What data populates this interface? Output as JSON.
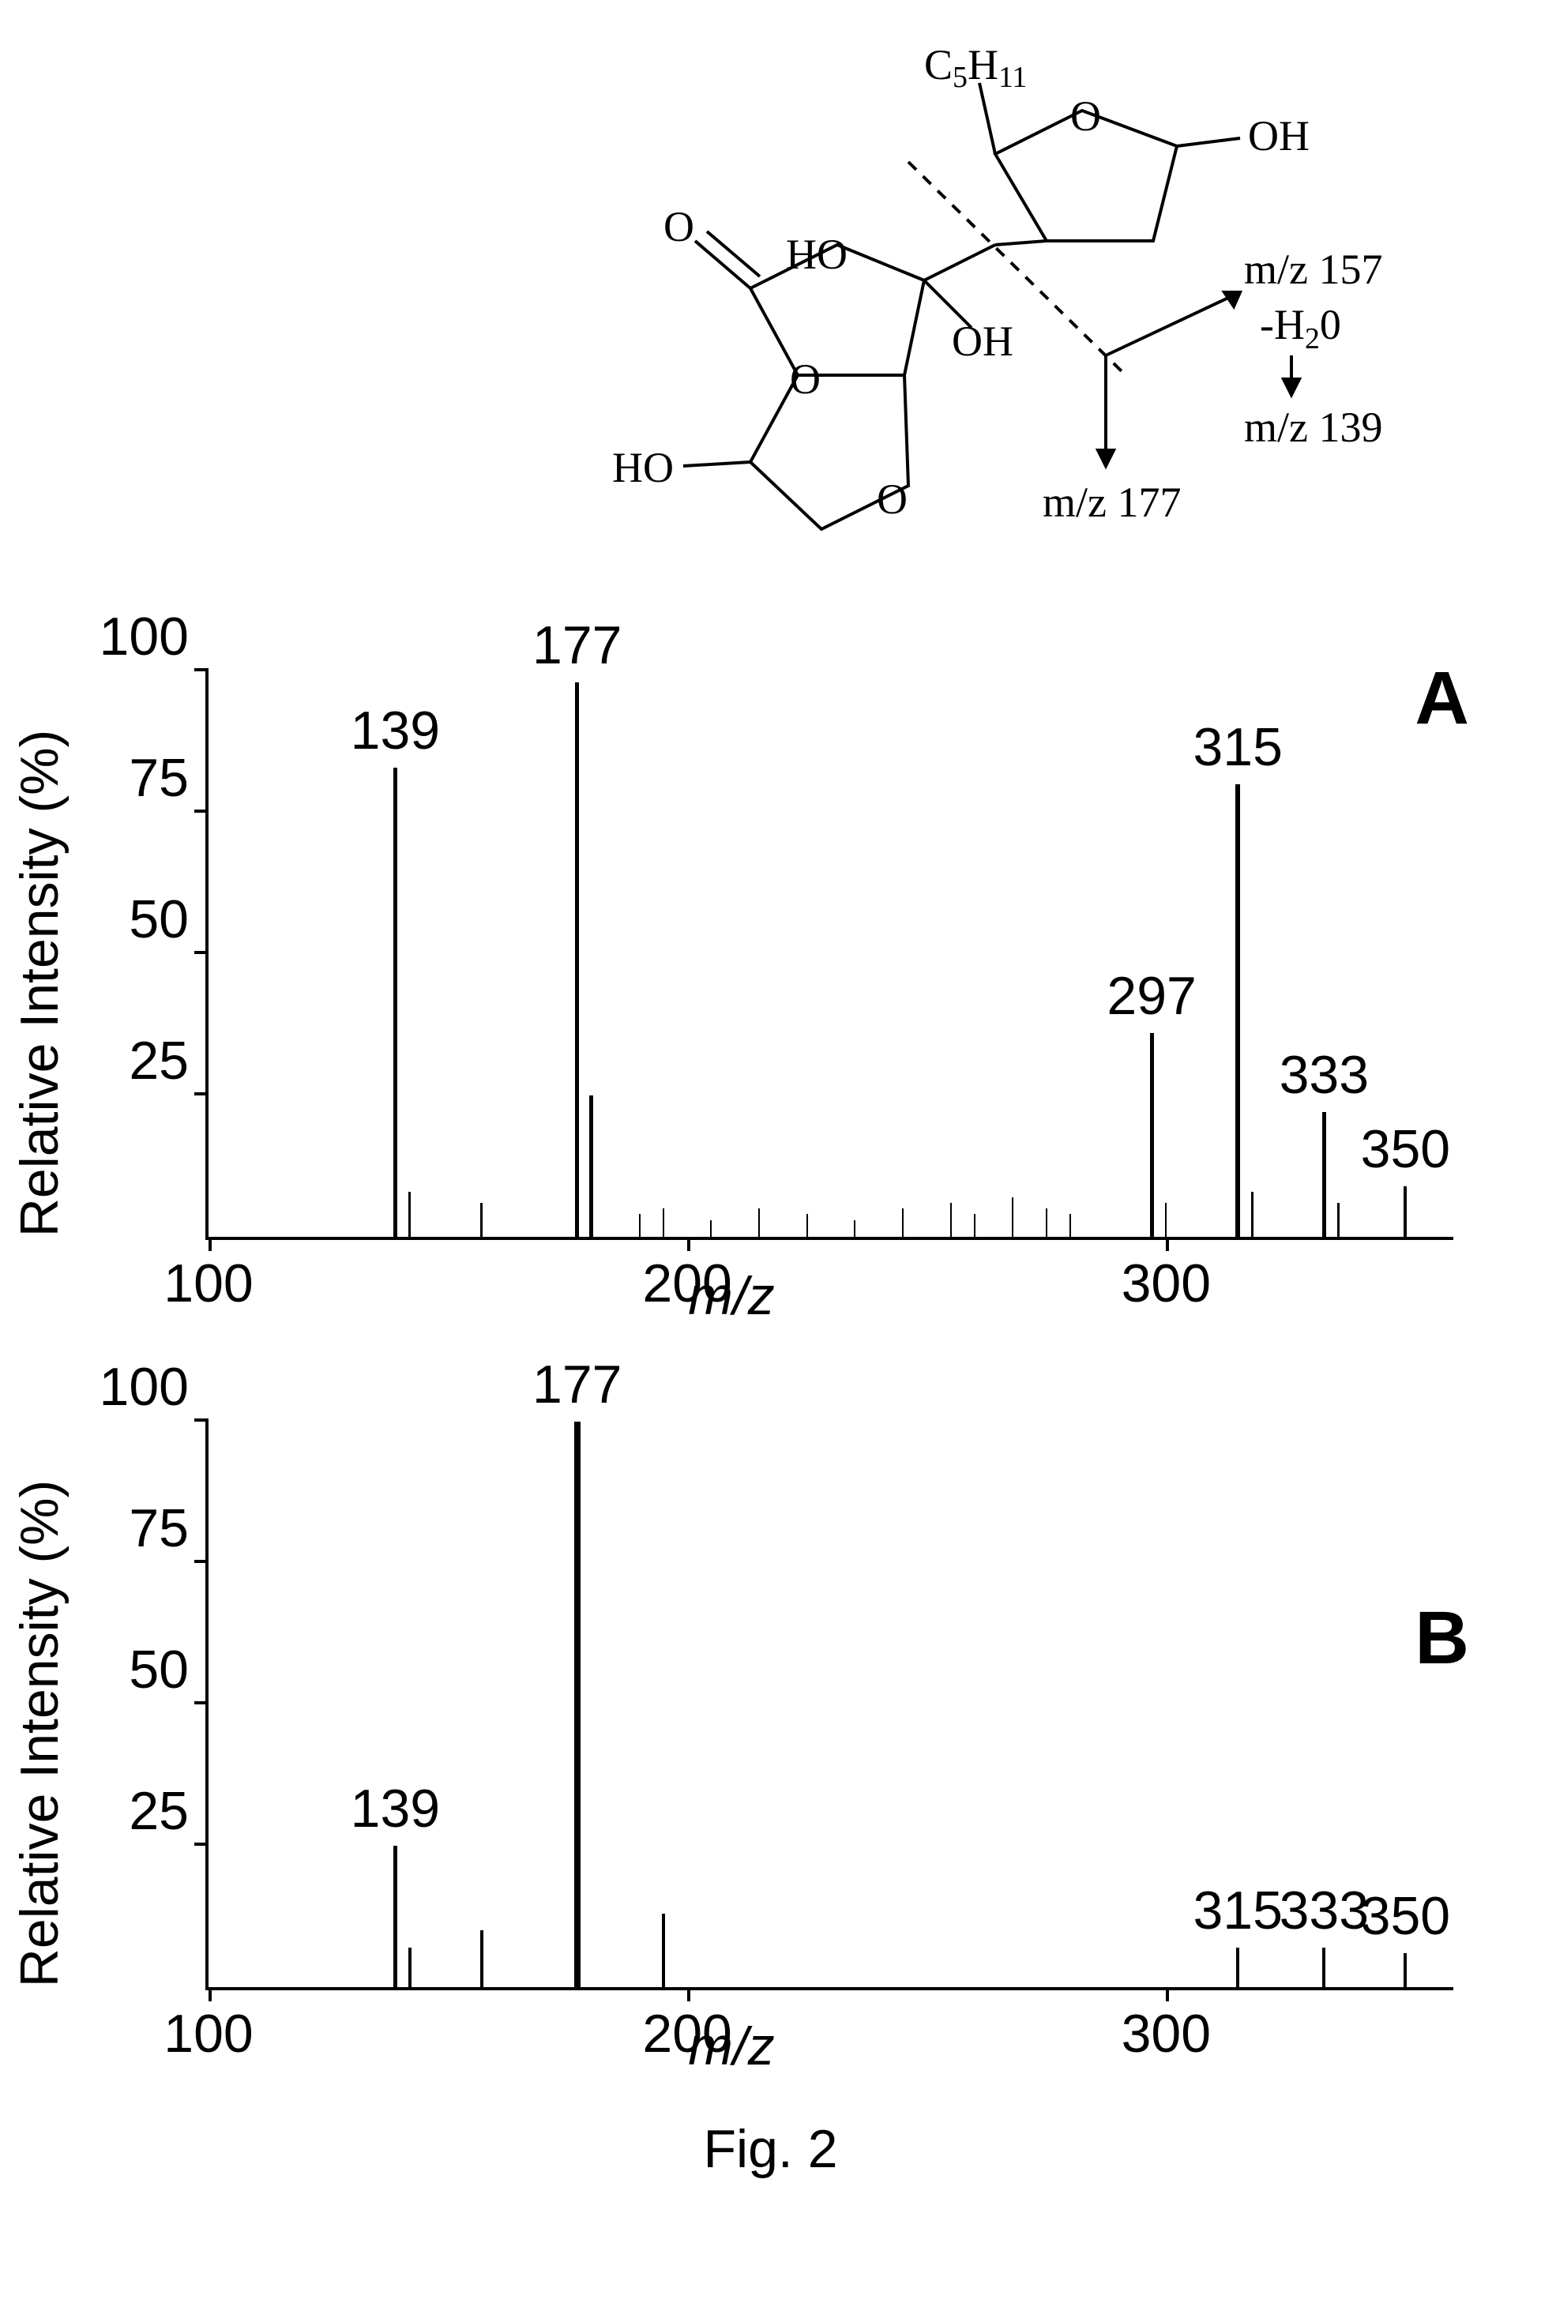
{
  "structure": {
    "formula_label": "C₅H₁₁",
    "fragments": {
      "f1": "m/z 157",
      "f2": "-H₂0",
      "f3": "m/z 139",
      "f4": "m/z 177"
    },
    "atoms": {
      "oh1": "OH",
      "oh2": "OH",
      "oh3": "OH",
      "ho1": "HO",
      "ho2": "HO",
      "o1": "O",
      "o2": "O",
      "o3": "O",
      "o4": "O"
    }
  },
  "chart_a": {
    "type": "mass-spectrum",
    "panel_label": "A",
    "ylabel": "Relative Intensity (%)",
    "xlabel": "m/z",
    "xlim": [
      100,
      360
    ],
    "ylim": [
      0,
      100
    ],
    "yticks": [
      25,
      50,
      75,
      100
    ],
    "xticks": [
      100,
      200,
      300
    ],
    "axis_color": "#000000",
    "background_color": "#ffffff",
    "peak_color": "#000000",
    "label_fontsize": 68,
    "peaks": [
      {
        "mz": 139,
        "intensity": 83,
        "label": "139",
        "width": 5
      },
      {
        "mz": 142,
        "intensity": 8,
        "width": 3
      },
      {
        "mz": 157,
        "intensity": 6,
        "width": 3
      },
      {
        "mz": 177,
        "intensity": 98,
        "label": "177",
        "width": 5
      },
      {
        "mz": 180,
        "intensity": 25,
        "width": 5
      },
      {
        "mz": 190,
        "intensity": 4,
        "width": 2
      },
      {
        "mz": 195,
        "intensity": 5,
        "width": 2
      },
      {
        "mz": 205,
        "intensity": 3,
        "width": 2
      },
      {
        "mz": 215,
        "intensity": 5,
        "width": 2
      },
      {
        "mz": 225,
        "intensity": 4,
        "width": 2
      },
      {
        "mz": 235,
        "intensity": 3,
        "width": 2
      },
      {
        "mz": 245,
        "intensity": 5,
        "width": 2
      },
      {
        "mz": 255,
        "intensity": 6,
        "width": 2
      },
      {
        "mz": 260,
        "intensity": 4,
        "width": 2
      },
      {
        "mz": 268,
        "intensity": 7,
        "width": 2
      },
      {
        "mz": 275,
        "intensity": 5,
        "width": 2
      },
      {
        "mz": 280,
        "intensity": 4,
        "width": 2
      },
      {
        "mz": 297,
        "intensity": 36,
        "label": "297",
        "width": 5
      },
      {
        "mz": 300,
        "intensity": 6,
        "width": 2
      },
      {
        "mz": 315,
        "intensity": 80,
        "label": "315",
        "width": 6
      },
      {
        "mz": 318,
        "intensity": 8,
        "width": 3
      },
      {
        "mz": 333,
        "intensity": 22,
        "label": "333",
        "width": 5
      },
      {
        "mz": 336,
        "intensity": 6,
        "width": 3
      },
      {
        "mz": 350,
        "intensity": 9,
        "label": "350",
        "width": 4
      }
    ]
  },
  "chart_b": {
    "type": "mass-spectrum",
    "panel_label": "B",
    "ylabel": "Relative Intensity (%)",
    "xlabel": "m/z",
    "xlim": [
      100,
      360
    ],
    "ylim": [
      0,
      100
    ],
    "yticks": [
      25,
      50,
      75,
      100
    ],
    "xticks": [
      100,
      200,
      300
    ],
    "axis_color": "#000000",
    "background_color": "#ffffff",
    "peak_color": "#000000",
    "label_fontsize": 68,
    "peaks": [
      {
        "mz": 139,
        "intensity": 25,
        "label": "139",
        "width": 5
      },
      {
        "mz": 142,
        "intensity": 7,
        "width": 4
      },
      {
        "mz": 157,
        "intensity": 10,
        "width": 4
      },
      {
        "mz": 177,
        "intensity": 100,
        "label": "177",
        "width": 8
      },
      {
        "mz": 195,
        "intensity": 13,
        "width": 4
      },
      {
        "mz": 315,
        "intensity": 7,
        "label": "315",
        "width": 4
      },
      {
        "mz": 333,
        "intensity": 7,
        "label": "333",
        "width": 4
      },
      {
        "mz": 350,
        "intensity": 6,
        "label": "350",
        "width": 4
      }
    ]
  },
  "caption": "Fig. 2"
}
